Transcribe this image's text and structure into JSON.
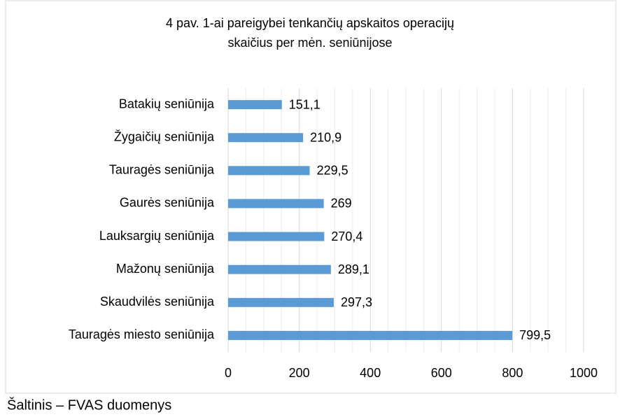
{
  "chart_data": {
    "type": "bar",
    "orientation": "horizontal",
    "title": [
      "4 pav. 1-ai pareigybei tenkančių apskaitos operacijų",
      "skaičius per mėn. seniūnijose"
    ],
    "categories": [
      "Batakių seniūnija",
      "Žygaičių seniūnija",
      "Tauragės seniūnija",
      "Gaurės seniūnija",
      "Lauksargių seniūnija",
      "Mažonų seniūnija",
      "Skaudvilės seniūnija",
      "Tauragės miesto seniūnija"
    ],
    "values": [
      151.1,
      210.9,
      229.5,
      269,
      270.4,
      289.1,
      297.3,
      799.5
    ],
    "value_labels": [
      "151,1",
      "210,9",
      "229,5",
      "269",
      "270,4",
      "289,1",
      "297,3",
      "799,5"
    ],
    "color": "#5b9bd5",
    "xlim": [
      0,
      1000
    ],
    "xticks": [
      0,
      200,
      400,
      600,
      800,
      1000
    ],
    "minor_xticks": [
      50,
      100,
      150,
      250,
      300,
      350,
      450,
      500,
      550,
      650,
      700,
      750,
      850,
      900,
      950
    ],
    "grid": true,
    "source": "Šaltinis – FVAS duomenys"
  }
}
